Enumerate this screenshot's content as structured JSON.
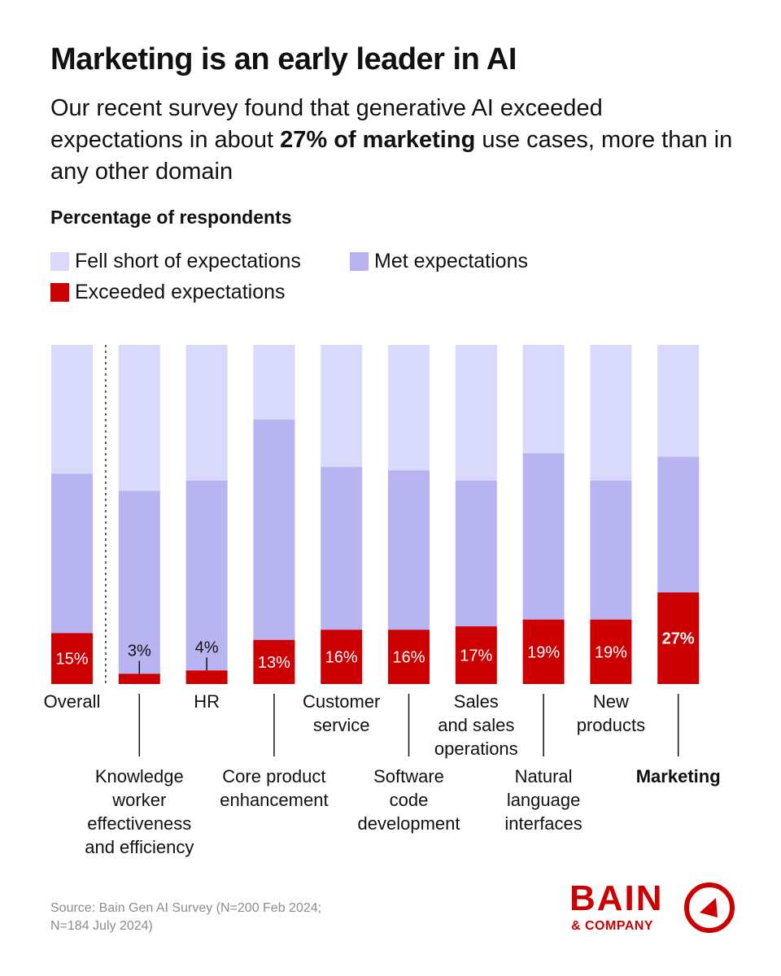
{
  "title": "Marketing is an early leader in AI",
  "subtitle": {
    "pre": "Our recent survey found that generative AI exceeded expectations in about ",
    "bold": "27% of marketing",
    "post": " use cases, more than in any other domain"
  },
  "measure_label": "Percentage of respondents",
  "legend": [
    {
      "label": "Fell short of expectations",
      "color": "#d9d9fb"
    },
    {
      "label": "Met expectations",
      "color": "#b8b4f1"
    },
    {
      "label": "Exceeded expectations",
      "color": "#cc0000"
    }
  ],
  "chart_data": {
    "type": "bar",
    "stacked": true,
    "normalized_to": 100,
    "categories": [
      "Overall",
      "Knowledge worker effectiveness and efficiency",
      "HR",
      "Core product enhancement",
      "Customer service",
      "Software code development",
      "Sales and sales operations",
      "Natural language interfaces",
      "New products",
      "Marketing"
    ],
    "category_lines": [
      [
        "Overall"
      ],
      [
        "Knowledge",
        "worker",
        "effectiveness",
        "and efficiency"
      ],
      [
        "HR"
      ],
      [
        "Core product",
        "enhancement"
      ],
      [
        "Customer",
        "service"
      ],
      [
        "Software",
        "code",
        "development"
      ],
      [
        "Sales",
        "and sales",
        "operations"
      ],
      [
        "Natural",
        "language",
        "interfaces"
      ],
      [
        "New",
        "products"
      ],
      [
        "Marketing"
      ]
    ],
    "series": [
      {
        "name": "Exceeded expectations",
        "values": [
          15,
          3,
          4,
          13,
          16,
          16,
          17,
          19,
          19,
          27
        ]
      },
      {
        "name": "Met expectations",
        "values": [
          47,
          54,
          56,
          65,
          48,
          47,
          43,
          49,
          41,
          40
        ]
      },
      {
        "name": "Fell short of expectations",
        "values": [
          38,
          43,
          40,
          22,
          36,
          37,
          40,
          32,
          40,
          33
        ]
      }
    ],
    "data_labels": [
      "15%",
      "3%",
      "4%",
      "13%",
      "16%",
      "16%",
      "17%",
      "19%",
      "19%",
      "27%"
    ],
    "highlight_category": "Marketing",
    "colors": {
      "exceeded": "#cc0000",
      "met": "#b8b4f1",
      "short": "#d9d9fb"
    }
  },
  "source": {
    "line1": "Source: Bain Gen AI Survey (N=200 Feb 2024;",
    "line2": "N=184 July 2024)"
  },
  "logo": {
    "word": "BAIN",
    "sub": "& COMPANY"
  }
}
